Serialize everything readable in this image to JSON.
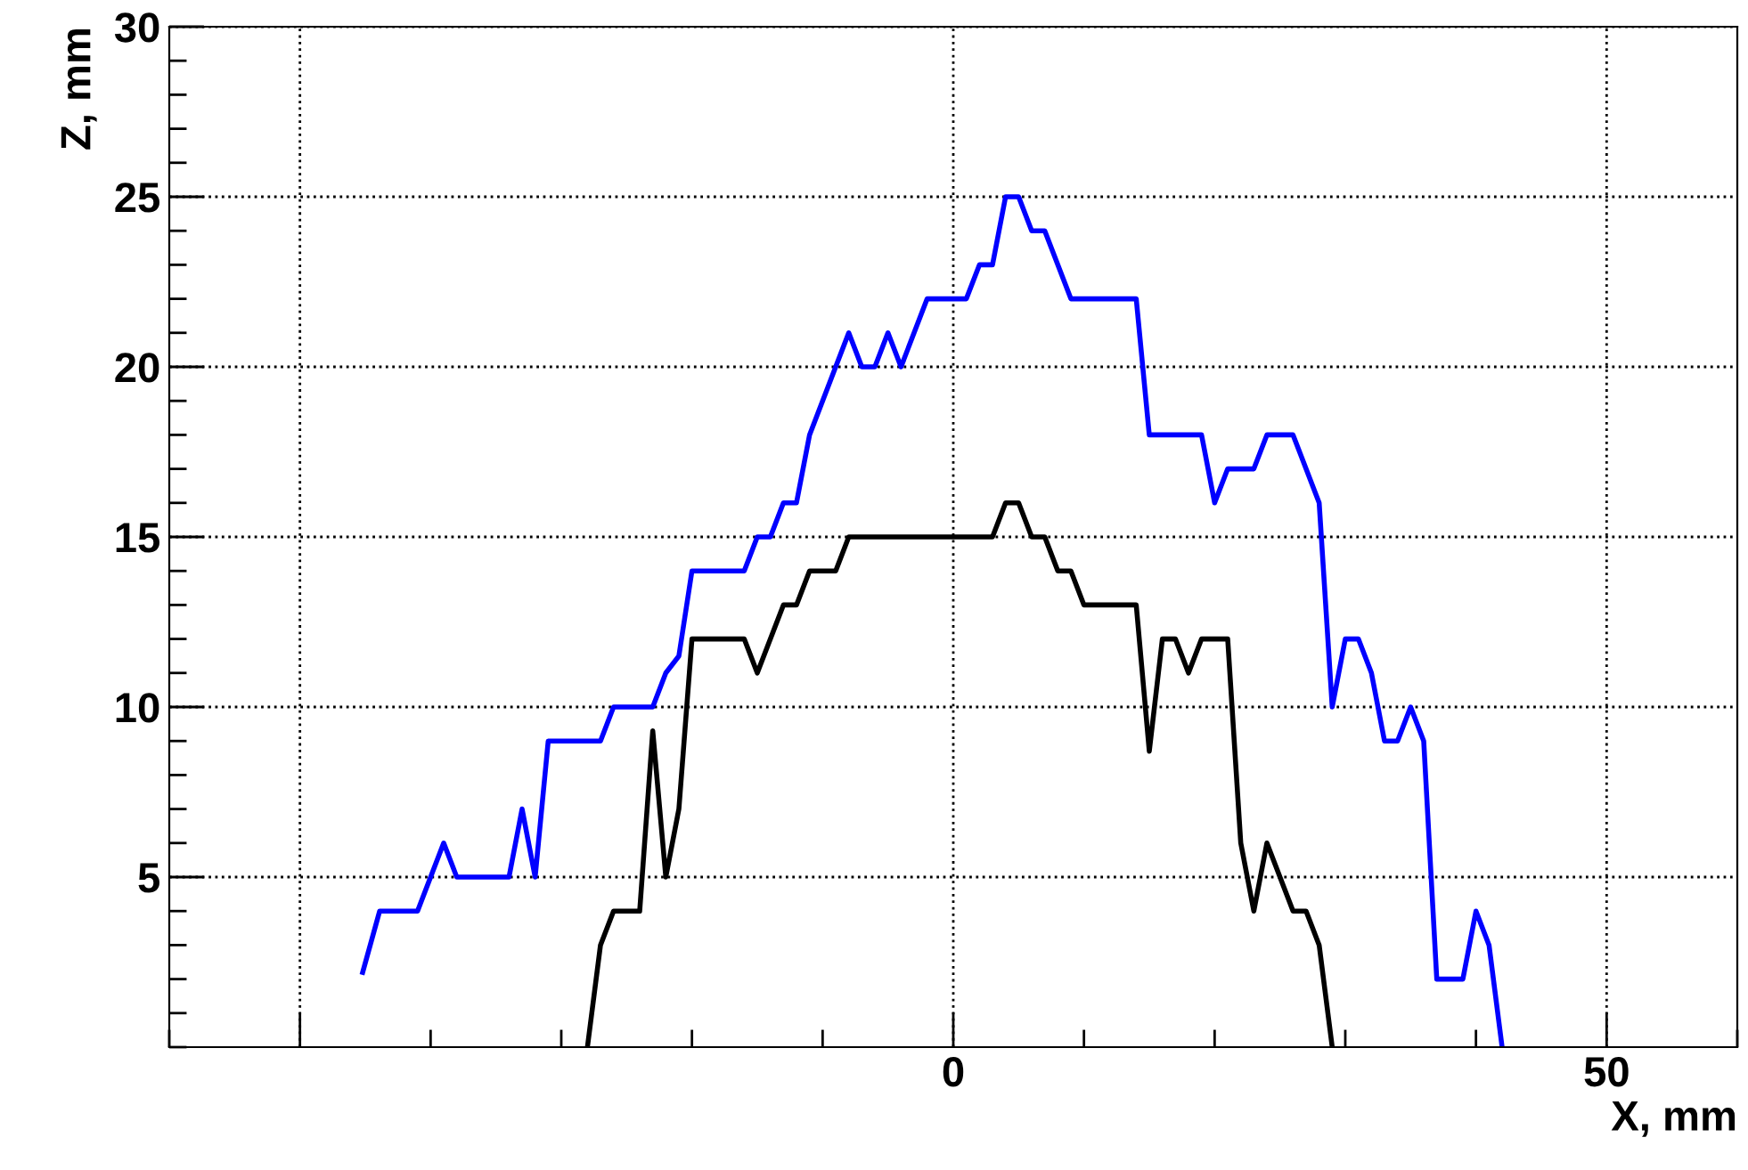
{
  "chart_data": {
    "type": "line",
    "xlabel": "X, mm",
    "ylabel": "Z, mm",
    "xlim": [
      -60,
      60
    ],
    "ylim": [
      0,
      30
    ],
    "xticks": [
      {
        "value": -50,
        "label": null
      },
      0,
      50
    ],
    "yticks": [
      5,
      10,
      15,
      20,
      25,
      30
    ],
    "grid": true,
    "marker": "none",
    "line_style": "solid",
    "series": [
      {
        "color": "#0000ff",
        "x": [
          -45.2,
          -43.9,
          -41,
          -39,
          -38,
          -34,
          -33,
          -32,
          -31,
          -27,
          -26,
          -23,
          -22,
          -21,
          -20,
          -16,
          -15,
          -14,
          -13,
          -12,
          -11,
          -8,
          -7,
          -6,
          -5,
          -4,
          -2,
          1,
          2,
          3,
          4,
          5,
          6,
          7,
          9,
          14,
          15,
          19,
          20,
          21,
          23,
          24,
          26,
          28,
          29,
          30,
          31,
          32,
          33,
          34,
          35,
          36,
          37,
          39,
          40,
          41,
          42
        ],
        "values": [
          2.2,
          4,
          4,
          6,
          5,
          5,
          7,
          5,
          9,
          9,
          10,
          10,
          11,
          11.5,
          14,
          14,
          15,
          15,
          16,
          16,
          18,
          21,
          20,
          20,
          21,
          20,
          22,
          22,
          23,
          23,
          25,
          25,
          24,
          24,
          22,
          22,
          18,
          18,
          16,
          17,
          17,
          18,
          18,
          16,
          10,
          12,
          12,
          11,
          9,
          9,
          10,
          9,
          2,
          2,
          4,
          3,
          0
        ]
      },
      {
        "color": "#000000",
        "x": [
          -28,
          -27,
          -26,
          -24,
          -23,
          -22,
          -21,
          -20,
          -16,
          -15,
          -13,
          -12,
          -11,
          -9,
          -8,
          3,
          4,
          5,
          6,
          7,
          8,
          9,
          10,
          14,
          15,
          16,
          17,
          18,
          19,
          21,
          22,
          23,
          24,
          26,
          27,
          28,
          29
        ],
        "values": [
          0,
          3,
          4,
          4,
          9.3,
          5,
          7,
          12,
          12,
          11,
          13,
          13,
          14,
          14,
          15,
          15,
          16,
          16,
          15,
          15,
          14,
          14,
          13,
          13,
          8.7,
          12,
          12,
          11,
          12,
          12,
          6,
          4,
          6,
          4,
          4,
          3,
          0
        ]
      }
    ]
  }
}
